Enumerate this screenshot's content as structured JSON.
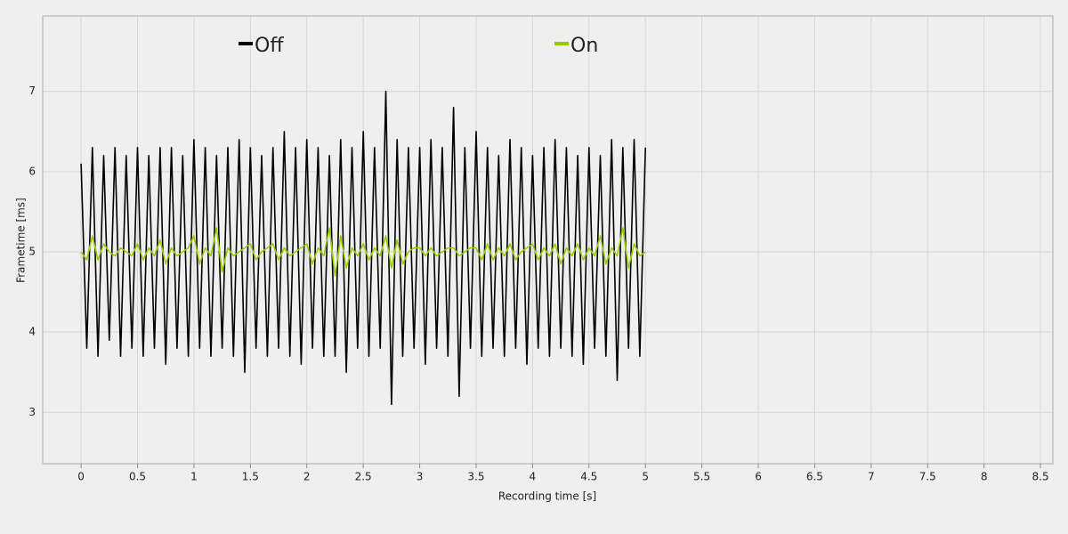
{
  "chart_data": {
    "type": "line",
    "xlabel": "Recording time [s]",
    "ylabel": "Frametime [ms]",
    "x": [
      0,
      0.05,
      0.1,
      0.15,
      0.2,
      0.25,
      0.3,
      0.35,
      0.4,
      0.45,
      0.5,
      0.55,
      0.6,
      0.65,
      0.7,
      0.75,
      0.8,
      0.85,
      0.9,
      0.95,
      1,
      1.05,
      1.1,
      1.15,
      1.2,
      1.25,
      1.3,
      1.35,
      1.4,
      1.45,
      1.5,
      1.55,
      1.6,
      1.65,
      1.7,
      1.75,
      1.8,
      1.85,
      1.9,
      1.95,
      2,
      2.05,
      2.1,
      2.15,
      2.2,
      2.25,
      2.3,
      2.35,
      2.4,
      2.45,
      2.5,
      2.55,
      2.6,
      2.65,
      2.7,
      2.75,
      2.8,
      2.85,
      2.9,
      2.95,
      3,
      3.05,
      3.1,
      3.15,
      3.2,
      3.25,
      3.3,
      3.35,
      3.4,
      3.45,
      3.5,
      3.55,
      3.6,
      3.65,
      3.7,
      3.75,
      3.8,
      3.85,
      3.9,
      3.95,
      4,
      4.05,
      4.1,
      4.15,
      4.2,
      4.25,
      4.3,
      4.35,
      4.4,
      4.45,
      4.5,
      4.55,
      4.6,
      4.65,
      4.7,
      4.75,
      4.8,
      4.85,
      4.9,
      4.95,
      5
    ],
    "series": [
      {
        "name": "Off",
        "color": "#000000",
        "values": [
          6.1,
          3.8,
          6.3,
          3.7,
          6.2,
          3.9,
          6.3,
          3.7,
          6.2,
          3.8,
          6.3,
          3.7,
          6.2,
          3.8,
          6.3,
          3.6,
          6.3,
          3.8,
          6.2,
          3.7,
          6.4,
          3.8,
          6.3,
          3.7,
          6.2,
          3.8,
          6.3,
          3.7,
          6.4,
          3.5,
          6.3,
          3.8,
          6.2,
          3.7,
          6.3,
          3.8,
          6.5,
          3.7,
          6.3,
          3.6,
          6.4,
          3.8,
          6.3,
          3.7,
          6.2,
          3.7,
          6.4,
          3.5,
          6.3,
          3.8,
          6.5,
          3.7,
          6.3,
          3.8,
          7.0,
          3.1,
          6.4,
          3.7,
          6.3,
          3.8,
          6.3,
          3.6,
          6.4,
          3.8,
          6.3,
          3.7,
          6.8,
          3.2,
          6.3,
          3.8,
          6.5,
          3.7,
          6.3,
          3.8,
          6.2,
          3.7,
          6.4,
          3.8,
          6.3,
          3.6,
          6.2,
          3.8,
          6.3,
          3.7,
          6.4,
          3.8,
          6.3,
          3.7,
          6.2,
          3.6,
          6.3,
          3.8,
          6.2,
          3.7,
          6.4,
          3.4,
          6.3,
          3.8,
          6.4,
          3.7,
          6.3
        ]
      },
      {
        "name": "On",
        "color": "#99cc00",
        "values": [
          5.0,
          4.9,
          5.2,
          4.9,
          5.1,
          5.0,
          4.95,
          5.05,
          5.0,
          4.95,
          5.1,
          4.9,
          5.05,
          4.95,
          5.15,
          4.85,
          5.05,
          4.95,
          5.0,
          5.05,
          5.2,
          4.85,
          5.05,
          4.95,
          5.3,
          4.75,
          5.05,
          4.95,
          5.0,
          5.05,
          5.1,
          4.9,
          5.0,
          5.05,
          5.1,
          4.9,
          5.05,
          4.95,
          5.0,
          5.05,
          5.1,
          4.85,
          5.05,
          4.95,
          5.3,
          4.7,
          5.2,
          4.8,
          5.05,
          4.95,
          5.1,
          4.9,
          5.05,
          4.95,
          5.2,
          4.8,
          5.15,
          4.85,
          5.0,
          5.05,
          5.05,
          4.95,
          5.05,
          4.95,
          5.0,
          5.05,
          5.05,
          4.95,
          5.0,
          5.05,
          5.05,
          4.9,
          5.1,
          4.9,
          5.05,
          4.95,
          5.1,
          4.9,
          5.0,
          5.05,
          5.1,
          4.9,
          5.05,
          4.95,
          5.1,
          4.85,
          5.05,
          4.95,
          5.1,
          4.9,
          5.05,
          4.95,
          5.2,
          4.85,
          5.05,
          4.95,
          5.3,
          4.8,
          5.1,
          4.95,
          5.0
        ]
      }
    ],
    "xlim": [
      -0.34,
      8.61
    ],
    "ylim": [
      2.36,
      7.94
    ],
    "xticks": [
      0,
      0.5,
      1,
      1.5,
      2,
      2.5,
      3,
      3.5,
      4,
      4.5,
      5,
      5.5,
      6,
      6.5,
      7,
      7.5,
      8,
      8.5
    ],
    "yticks": [
      3,
      4,
      5,
      6,
      7
    ],
    "grid": true,
    "legend": "top"
  }
}
